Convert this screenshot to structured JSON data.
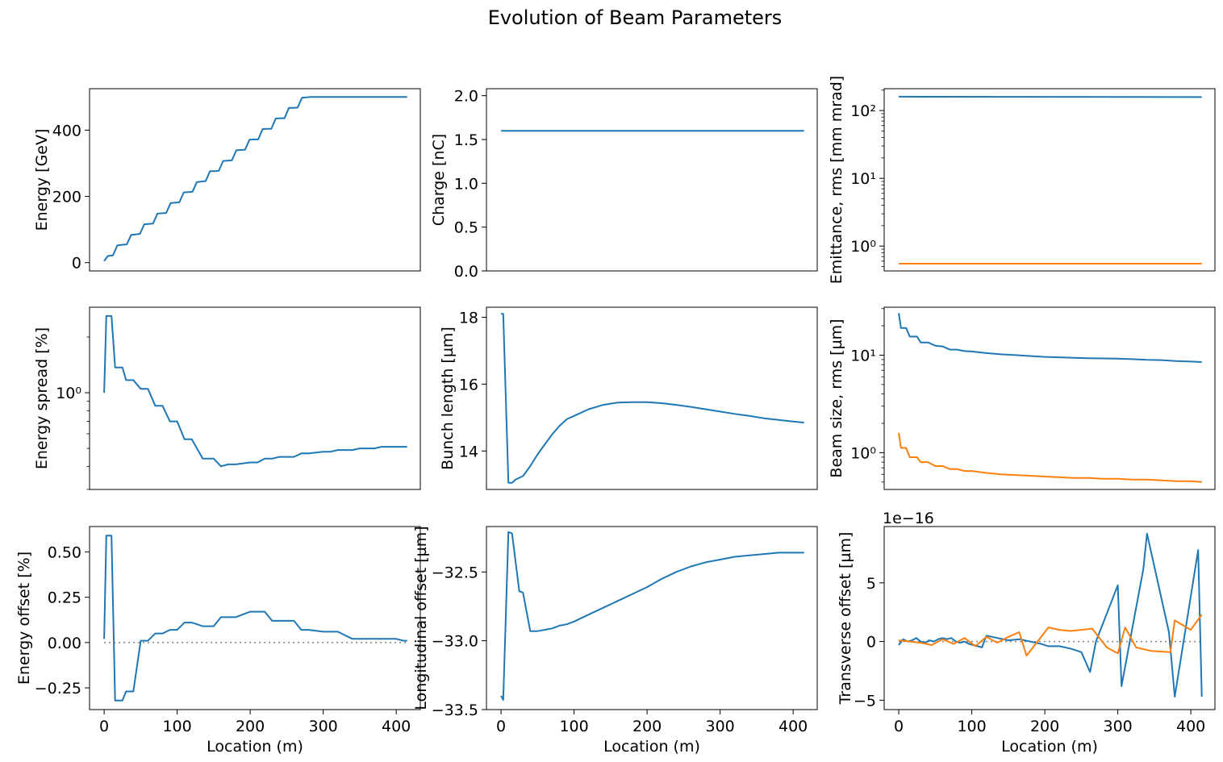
{
  "title": "Evolution of Beam Parameters",
  "colors": {
    "blue": "#1f77b4",
    "orange": "#ff7f0e",
    "zero_line": "#808080",
    "axes": "#000000"
  },
  "chart_data": [
    {
      "id": "energy",
      "type": "line",
      "ylabel": "Energy [GeV]",
      "xlabel": "",
      "show_xticks": false,
      "xlim": [
        -20,
        433
      ],
      "ylim": [
        -25,
        525
      ],
      "yscale": "linear",
      "yticks": [
        0,
        200,
        400
      ],
      "ytick_labels": [
        "0",
        "200",
        "400"
      ],
      "series": [
        {
          "color": "blue",
          "x": [
            0,
            5,
            12,
            18,
            25,
            31,
            37,
            43,
            49,
            55,
            61,
            67,
            73,
            79,
            85,
            91,
            97,
            103,
            109,
            115,
            121,
            127,
            133,
            139,
            145,
            151,
            157,
            163,
            169,
            175,
            181,
            187,
            193,
            199,
            205,
            211,
            217,
            223,
            229,
            235,
            241,
            247,
            253,
            259,
            265,
            271,
            277,
            283,
            289,
            295,
            301,
            307,
            313,
            319,
            325,
            331,
            337,
            343,
            349,
            355,
            361,
            367,
            373,
            379,
            385,
            391,
            397,
            403,
            409,
            415
          ],
          "y": [
            5,
            20,
            22,
            52,
            54,
            55,
            84,
            85,
            87,
            116,
            117,
            118,
            148,
            149,
            150,
            180,
            181,
            182,
            212,
            213,
            214,
            243,
            245,
            246,
            276,
            276,
            277,
            307,
            308,
            309,
            339,
            340,
            341,
            371,
            372,
            372,
            403,
            404,
            404,
            435,
            436,
            436,
            467,
            467,
            468,
            498,
            499,
            500,
            500,
            500,
            500,
            500,
            500,
            500,
            500,
            500,
            500,
            500,
            500,
            500,
            500,
            500,
            500,
            500,
            500,
            500,
            500,
            500,
            500,
            500
          ]
        }
      ]
    },
    {
      "id": "charge",
      "type": "line",
      "ylabel": "Charge [nC]",
      "xlabel": "",
      "show_xticks": false,
      "xlim": [
        -20,
        433
      ],
      "ylim": [
        0,
        2.08
      ],
      "yscale": "linear",
      "yticks": [
        0,
        0.5,
        1.0,
        1.5,
        2.0
      ],
      "ytick_labels": [
        "0.0",
        "0.5",
        "1.0",
        "1.5",
        "2.0"
      ],
      "series": [
        {
          "color": "blue",
          "x": [
            0,
            415
          ],
          "y": [
            1.6,
            1.6
          ]
        }
      ]
    },
    {
      "id": "emittance",
      "type": "line",
      "ylabel": "Emittance, rms [mm mrad]",
      "xlabel": "",
      "show_xticks": false,
      "xlim": [
        -20,
        433
      ],
      "ylim": [
        0.43,
        210
      ],
      "yscale": "log",
      "yticks": [
        1,
        10,
        100
      ],
      "ytick_labels": [
        "10⁰",
        "10¹",
        "10²"
      ],
      "series": [
        {
          "color": "blue",
          "x": [
            0,
            415
          ],
          "y": [
            160,
            158
          ]
        },
        {
          "color": "orange",
          "x": [
            0,
            415
          ],
          "y": [
            0.55,
            0.55
          ]
        }
      ]
    },
    {
      "id": "energy_spread",
      "type": "line",
      "ylabel": "Energy spread [%]",
      "xlabel": "",
      "show_xticks": false,
      "xlim": [
        -20,
        433
      ],
      "ylim": [
        0.3,
        2.9
      ],
      "yscale": "log",
      "yticks": [
        1
      ],
      "ytick_labels": [
        "10⁰"
      ],
      "series": [
        {
          "color": "blue",
          "x": [
            0,
            3,
            10,
            15,
            25,
            30,
            40,
            50,
            60,
            70,
            80,
            90,
            100,
            110,
            120,
            135,
            150,
            160,
            170,
            180,
            200,
            210,
            220,
            230,
            240,
            260,
            270,
            280,
            300,
            310,
            320,
            340,
            350,
            370,
            380,
            400,
            410,
            415
          ],
          "y": [
            1.0,
            2.6,
            2.6,
            1.37,
            1.37,
            1.17,
            1.17,
            1.05,
            1.05,
            0.85,
            0.85,
            0.7,
            0.7,
            0.56,
            0.56,
            0.44,
            0.44,
            0.4,
            0.41,
            0.41,
            0.42,
            0.42,
            0.44,
            0.44,
            0.45,
            0.45,
            0.47,
            0.47,
            0.48,
            0.48,
            0.49,
            0.49,
            0.5,
            0.5,
            0.51,
            0.51,
            0.51,
            0.51
          ]
        }
      ]
    },
    {
      "id": "bunch_length",
      "type": "line",
      "ylabel": "Bunch length [µm]",
      "xlabel": "",
      "show_xticks": false,
      "xlim": [
        -20,
        433
      ],
      "ylim": [
        12.85,
        18.3
      ],
      "yscale": "linear",
      "yticks": [
        14,
        16,
        18
      ],
      "ytick_labels": [
        "14",
        "16",
        "18"
      ],
      "series": [
        {
          "color": "blue",
          "x": [
            0,
            3,
            10,
            15,
            20,
            30,
            40,
            50,
            60,
            70,
            80,
            90,
            100,
            120,
            140,
            160,
            180,
            200,
            220,
            240,
            260,
            280,
            300,
            320,
            340,
            360,
            380,
            400,
            410,
            415
          ],
          "y": [
            18.1,
            18.1,
            13.05,
            13.05,
            13.15,
            13.25,
            13.55,
            13.9,
            14.2,
            14.5,
            14.75,
            14.95,
            15.05,
            15.25,
            15.38,
            15.45,
            15.46,
            15.46,
            15.43,
            15.38,
            15.32,
            15.25,
            15.18,
            15.11,
            15.05,
            14.98,
            14.93,
            14.88,
            14.86,
            14.85
          ]
        }
      ]
    },
    {
      "id": "beam_size",
      "type": "line",
      "ylabel": "Beam size, rms [µm]",
      "xlabel": "",
      "show_xticks": false,
      "xlim": [
        -20,
        433
      ],
      "ylim": [
        0.42,
        31
      ],
      "yscale": "log",
      "yticks": [
        1,
        10
      ],
      "ytick_labels": [
        "10⁰",
        "10¹"
      ],
      "series": [
        {
          "color": "blue",
          "x": [
            0,
            3,
            10,
            15,
            25,
            30,
            40,
            50,
            60,
            70,
            80,
            90,
            100,
            120,
            140,
            160,
            180,
            200,
            220,
            240,
            260,
            280,
            300,
            320,
            340,
            360,
            380,
            400,
            415
          ],
          "y": [
            27,
            19,
            19,
            15.5,
            15.5,
            13.5,
            13.5,
            12.5,
            12.3,
            11.4,
            11.4,
            11.0,
            10.9,
            10.5,
            10.2,
            10.0,
            9.8,
            9.6,
            9.5,
            9.4,
            9.3,
            9.25,
            9.2,
            9.1,
            8.95,
            8.9,
            8.7,
            8.6,
            8.5
          ]
        },
        {
          "color": "orange",
          "x": [
            0,
            3,
            10,
            15,
            25,
            30,
            40,
            50,
            60,
            70,
            80,
            90,
            100,
            120,
            140,
            160,
            180,
            200,
            220,
            240,
            260,
            280,
            300,
            320,
            340,
            360,
            380,
            400,
            415
          ],
          "y": [
            1.6,
            1.12,
            1.12,
            0.9,
            0.9,
            0.8,
            0.8,
            0.73,
            0.73,
            0.68,
            0.68,
            0.65,
            0.65,
            0.62,
            0.6,
            0.59,
            0.58,
            0.57,
            0.56,
            0.55,
            0.55,
            0.54,
            0.54,
            0.53,
            0.53,
            0.52,
            0.51,
            0.51,
            0.5
          ]
        }
      ]
    },
    {
      "id": "energy_offset",
      "type": "line",
      "ylabel": "Energy offset [%]",
      "xlabel": "Location (m)",
      "show_xticks": true,
      "xlim": [
        -20,
        433
      ],
      "ylim": [
        -0.37,
        0.64
      ],
      "yscale": "linear",
      "xticks": [
        0,
        100,
        200,
        300,
        400
      ],
      "xtick_labels": [
        "0",
        "100",
        "200",
        "300",
        "400"
      ],
      "yticks": [
        -0.25,
        0,
        0.25,
        0.5
      ],
      "ytick_labels": [
        "−0.25",
        "0.00",
        "0.25",
        "0.50"
      ],
      "zero_line": true,
      "series": [
        {
          "color": "blue",
          "x": [
            0,
            3,
            10,
            15,
            25,
            30,
            40,
            50,
            60,
            70,
            80,
            90,
            100,
            110,
            120,
            135,
            150,
            160,
            170,
            180,
            200,
            210,
            220,
            230,
            240,
            260,
            270,
            280,
            300,
            310,
            320,
            340,
            350,
            370,
            380,
            400,
            410,
            415
          ],
          "y": [
            0.02,
            0.59,
            0.59,
            -0.32,
            -0.32,
            -0.27,
            -0.27,
            0.01,
            0.01,
            0.05,
            0.05,
            0.07,
            0.07,
            0.11,
            0.11,
            0.09,
            0.09,
            0.14,
            0.14,
            0.14,
            0.17,
            0.17,
            0.17,
            0.12,
            0.12,
            0.12,
            0.07,
            0.07,
            0.06,
            0.06,
            0.06,
            0.02,
            0.02,
            0.02,
            0.02,
            0.02,
            0.01,
            0.01
          ]
        }
      ]
    },
    {
      "id": "longitudinal_offset",
      "type": "line",
      "ylabel": "Longitudinal offset [µm]",
      "xlabel": "Location (m)",
      "show_xticks": true,
      "xlim": [
        -20,
        433
      ],
      "ylim": [
        -33.5,
        -32.17
      ],
      "yscale": "linear",
      "xticks": [
        0,
        100,
        200,
        300,
        400
      ],
      "xtick_labels": [
        "0",
        "100",
        "200",
        "300",
        "400"
      ],
      "yticks": [
        -33.5,
        -33.0,
        -32.5
      ],
      "ytick_labels": [
        "−33.5",
        "−33.0",
        "−32.5"
      ],
      "series": [
        {
          "color": "blue",
          "x": [
            0,
            3,
            10,
            15,
            25,
            30,
            40,
            50,
            60,
            70,
            80,
            90,
            100,
            120,
            140,
            160,
            180,
            200,
            220,
            240,
            260,
            280,
            300,
            320,
            340,
            360,
            380,
            400,
            415
          ],
          "y": [
            -33.4,
            -33.43,
            -32.21,
            -32.22,
            -32.64,
            -32.65,
            -32.93,
            -32.93,
            -32.92,
            -32.91,
            -32.89,
            -32.88,
            -32.86,
            -32.81,
            -32.76,
            -32.71,
            -32.66,
            -32.61,
            -32.55,
            -32.5,
            -32.46,
            -32.43,
            -32.41,
            -32.39,
            -32.38,
            -32.37,
            -32.36,
            -32.36,
            -32.36
          ]
        }
      ]
    },
    {
      "id": "transverse_offset",
      "type": "line",
      "ylabel": "Transverse offset [µm]",
      "xlabel": "Location (m)",
      "show_xticks": true,
      "xlim": [
        -20,
        433
      ],
      "ylim": [
        -5.8,
        9.8
      ],
      "yscale": "linear",
      "offset_text": "1e−16",
      "xticks": [
        0,
        100,
        200,
        300,
        400
      ],
      "xtick_labels": [
        "0",
        "100",
        "200",
        "300",
        "400"
      ],
      "yticks": [
        -5,
        0,
        5
      ],
      "ytick_labels": [
        "−5",
        "0",
        "5"
      ],
      "zero_line": true,
      "series": [
        {
          "color": "blue",
          "x": [
            0,
            6,
            12,
            18,
            24,
            30,
            36,
            42,
            48,
            54,
            60,
            66,
            72,
            78,
            84,
            90,
            96,
            102,
            108,
            114,
            120,
            135,
            150,
            165,
            180,
            195,
            205,
            220,
            235,
            250,
            262,
            270,
            300,
            305,
            335,
            340,
            370,
            378,
            410,
            415
          ],
          "y": [
            -0.3,
            0.2,
            0.0,
            0.1,
            0.3,
            0.0,
            -0.1,
            0.1,
            0.0,
            0.2,
            0.3,
            0.2,
            0.3,
            0.0,
            -0.1,
            0.0,
            -0.2,
            -0.3,
            -0.4,
            -0.5,
            0.5,
            0.3,
            0.1,
            0.2,
            0.0,
            -0.2,
            -0.4,
            -0.4,
            -0.6,
            -0.9,
            -2.6,
            0.0,
            4.8,
            -3.8,
            6.2,
            9.2,
            0.8,
            -4.7,
            7.8,
            -4.7
          ]
        },
        {
          "color": "orange",
          "x": [
            0,
            15,
            30,
            45,
            60,
            75,
            90,
            105,
            120,
            135,
            150,
            165,
            175,
            190,
            205,
            220,
            235,
            250,
            265,
            285,
            300,
            310,
            325,
            345,
            372,
            378,
            400,
            415
          ],
          "y": [
            0.1,
            0.0,
            -0.1,
            -0.3,
            0.2,
            -0.2,
            0.3,
            -0.4,
            0.4,
            -0.1,
            0.4,
            0.8,
            -1.2,
            0.0,
            1.2,
            1.0,
            0.9,
            1.0,
            1.1,
            -0.5,
            -1.0,
            1.2,
            -0.5,
            -0.8,
            -0.9,
            1.8,
            1.0,
            2.3
          ]
        }
      ]
    }
  ]
}
